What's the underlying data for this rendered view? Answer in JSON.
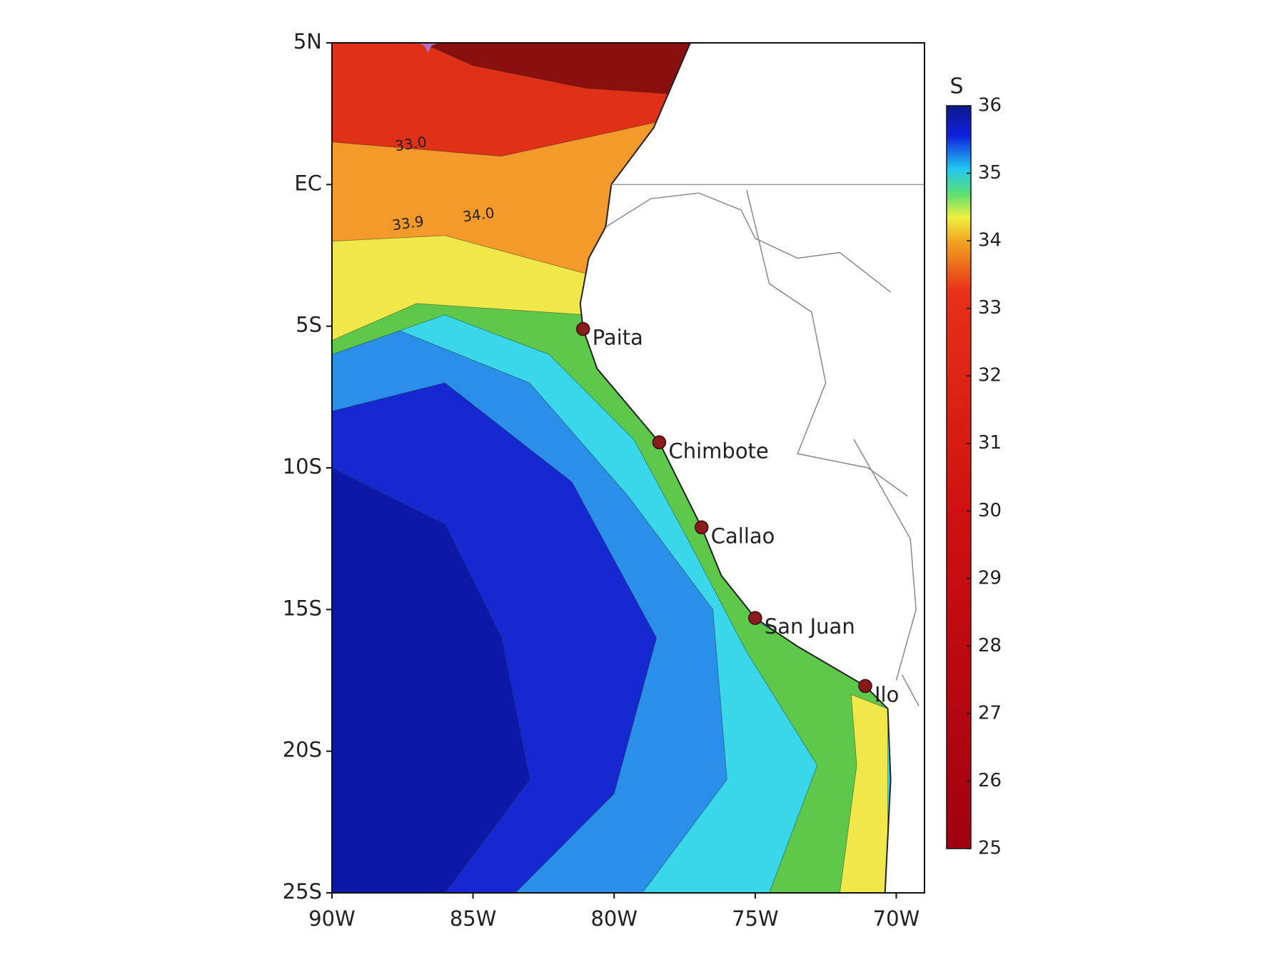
{
  "map": {
    "axes": {
      "xlim": [
        -90,
        -69
      ],
      "ylim": [
        -25,
        5
      ],
      "xticks": [
        {
          "value": -90,
          "label": "90W"
        },
        {
          "value": -85,
          "label": "85W"
        },
        {
          "value": -80,
          "label": "80W"
        },
        {
          "value": -75,
          "label": "75W"
        },
        {
          "value": -70,
          "label": "70W"
        }
      ],
      "yticks": [
        {
          "value": 5,
          "label": "5N"
        },
        {
          "value": 0,
          "label": "EC"
        },
        {
          "value": -5,
          "label": "5S"
        },
        {
          "value": -10,
          "label": "10S"
        },
        {
          "value": -15,
          "label": "15S"
        },
        {
          "value": -20,
          "label": "20S"
        },
        {
          "value": -25,
          "label": "25S"
        }
      ]
    },
    "cities": [
      {
        "name": "Paita",
        "lon": -81.1,
        "lat": -5.1
      },
      {
        "name": "Chimbote",
        "lon": -78.4,
        "lat": -9.1
      },
      {
        "name": "Callao",
        "lon": -76.9,
        "lat": -12.1
      },
      {
        "name": "San Juan",
        "lon": -75.0,
        "lat": -15.3
      },
      {
        "name": "Ilo",
        "lon": -71.1,
        "lat": -17.7
      }
    ],
    "contour_labels": [
      "33.0",
      "33.9",
      "34.0"
    ],
    "colorbar": {
      "label": "S",
      "range": [
        25,
        36
      ],
      "ticks": [
        25,
        26,
        27,
        28,
        29,
        30,
        31,
        32,
        33,
        34,
        35,
        36
      ]
    }
  }
}
